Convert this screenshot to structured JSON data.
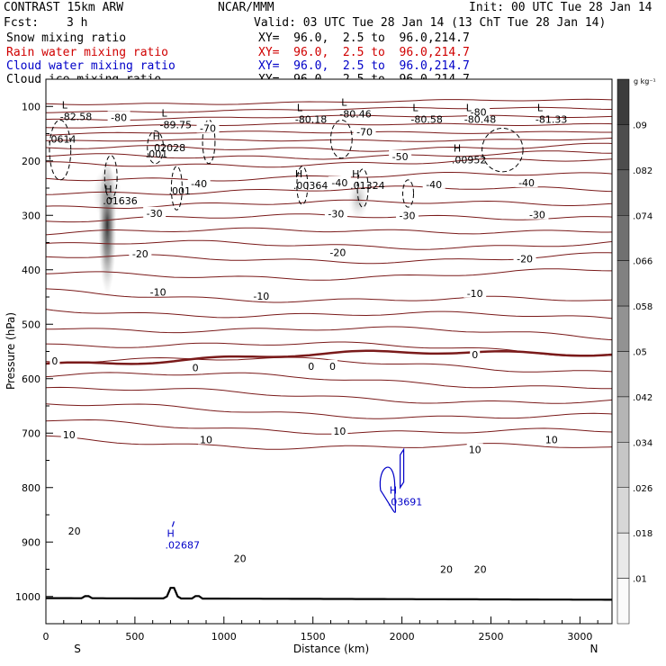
{
  "header": {
    "model": "CONTRAST 15km ARW",
    "org": "NCAR/MMM",
    "init": "Init: 00 UTC Tue 28 Jan 14",
    "fcst_label": "Fcst:",
    "fcst_value": "3 h",
    "valid": "Valid: 03 UTC Tue 28 Jan 14 (13 ChT Tue 28 Jan 14)"
  },
  "fields": [
    {
      "name": "Snow mixing ratio",
      "xy": "XY=  96.0,  2.5 to  96.0,214.7",
      "color": "#000000"
    },
    {
      "name": "Rain water mixing ratio",
      "xy": "XY=  96.0,  2.5 to  96.0,214.7",
      "color": "#d00000"
    },
    {
      "name": "Cloud water mixing ratio",
      "xy": "XY=  96.0,  2.5 to  96.0,214.7",
      "color": "#0000c8"
    },
    {
      "name": "Cloud ice mixing ratio",
      "xy": "XY=  96.0,  2.5 to  96.0,214.7",
      "color": "#000000"
    }
  ],
  "chart_data": {
    "type": "contour",
    "xlabel": "Distance (km)",
    "ylabel": "Pressure (hPa)",
    "xlim": [
      0,
      3180
    ],
    "ylim": [
      1050,
      50
    ],
    "x_ticks": [
      0,
      500,
      1000,
      1500,
      2000,
      2500,
      3000
    ],
    "y_ticks": [
      100,
      200,
      300,
      400,
      500,
      600,
      700,
      800,
      900,
      1000
    ],
    "end_labels": {
      "left": "S",
      "right": "N"
    },
    "colorbar": {
      "unit": "g kg⁻¹",
      "levels": [
        ".09",
        ".082",
        ".074",
        ".066",
        ".058",
        ".05",
        ".042",
        ".034",
        ".026",
        ".018",
        ".01"
      ]
    },
    "temperature_contours": {
      "color": "#7a1a1a",
      "interval_c": 5,
      "labels": [
        {
          "value": "-80",
          "x": 410,
          "p": 120
        },
        {
          "value": "-80",
          "x": 2430,
          "p": 110
        },
        {
          "value": "-70",
          "x": 910,
          "p": 140
        },
        {
          "value": "-70",
          "x": 1790,
          "p": 147
        },
        {
          "value": "-50",
          "x": 1990,
          "p": 192
        },
        {
          "value": "-40",
          "x": 860,
          "p": 242
        },
        {
          "value": "-40",
          "x": 1650,
          "p": 240
        },
        {
          "value": "-40",
          "x": 2180,
          "p": 243
        },
        {
          "value": "-40",
          "x": 2700,
          "p": 240
        },
        {
          "value": "-30",
          "x": 610,
          "p": 296
        },
        {
          "value": "-30",
          "x": 1630,
          "p": 297
        },
        {
          "value": "-30",
          "x": 2030,
          "p": 300
        },
        {
          "value": "-30",
          "x": 2760,
          "p": 299
        },
        {
          "value": "-20",
          "x": 530,
          "p": 371
        },
        {
          "value": "-20",
          "x": 1640,
          "p": 368
        },
        {
          "value": "-20",
          "x": 2690,
          "p": 380
        },
        {
          "value": "-10",
          "x": 630,
          "p": 441
        },
        {
          "value": "-10",
          "x": 1210,
          "p": 448
        },
        {
          "value": "-10",
          "x": 2410,
          "p": 443
        },
        {
          "value": "0",
          "x": 50,
          "p": 567
        },
        {
          "value": "0",
          "x": 840,
          "p": 580
        },
        {
          "value": "0",
          "x": 1490,
          "p": 577
        },
        {
          "value": "0",
          "x": 1610,
          "p": 577
        },
        {
          "value": "0",
          "x": 2410,
          "p": 556
        },
        {
          "value": "10",
          "x": 130,
          "p": 703
        },
        {
          "value": "10",
          "x": 900,
          "p": 712
        },
        {
          "value": "10",
          "x": 1650,
          "p": 696
        },
        {
          "value": "10",
          "x": 2410,
          "p": 730
        },
        {
          "value": "10",
          "x": 2840,
          "p": 712
        },
        {
          "value": "20",
          "x": 160,
          "p": 880
        },
        {
          "value": "20",
          "x": 1090,
          "p": 930
        },
        {
          "value": "20",
          "x": 2250,
          "p": 950
        },
        {
          "value": "20",
          "x": 2440,
          "p": 950
        }
      ]
    },
    "extrema": [
      {
        "type": "L",
        "value": "-82.58",
        "x": 110,
        "p": 110
      },
      {
        "type": "L",
        "value": "-89.75",
        "x": 670,
        "p": 125
      },
      {
        "type": "L",
        "value": "-80.18",
        "x": 1430,
        "p": 115
      },
      {
        "type": "L",
        "value": "-80.46",
        "x": 1680,
        "p": 105
      },
      {
        "type": "L",
        "value": "-80.58",
        "x": 2080,
        "p": 115
      },
      {
        "type": "L",
        "value": "-80.48",
        "x": 2380,
        "p": 115
      },
      {
        "type": "L",
        "value": "-81.33",
        "x": 2780,
        "p": 115
      },
      {
        "type": "H",
        "value": ".02028",
        "x": 620,
        "p": 167
      },
      {
        "type": "H",
        "value": ".01636",
        "x": 350,
        "p": 265
      },
      {
        "type": "H",
        "value": ".00364",
        "x": 1420,
        "p": 237
      },
      {
        "type": "H",
        "value": ".01324",
        "x": 1740,
        "p": 237
      },
      {
        "type": "H",
        "value": ".00952",
        "x": 2310,
        "p": 190
      },
      {
        "type": "H",
        "value": ".03691",
        "x": 1950,
        "p": 818
      },
      {
        "type": "H",
        "value": ".02687",
        "x": 700,
        "p": 897
      }
    ],
    "ice_labels": [
      {
        "value": ".0614",
        "x": 10,
        "p": 160
      },
      {
        "value": ".001",
        "x": 560,
        "p": 187
      },
      {
        "value": ".001",
        "x": 690,
        "p": 255
      }
    ]
  }
}
